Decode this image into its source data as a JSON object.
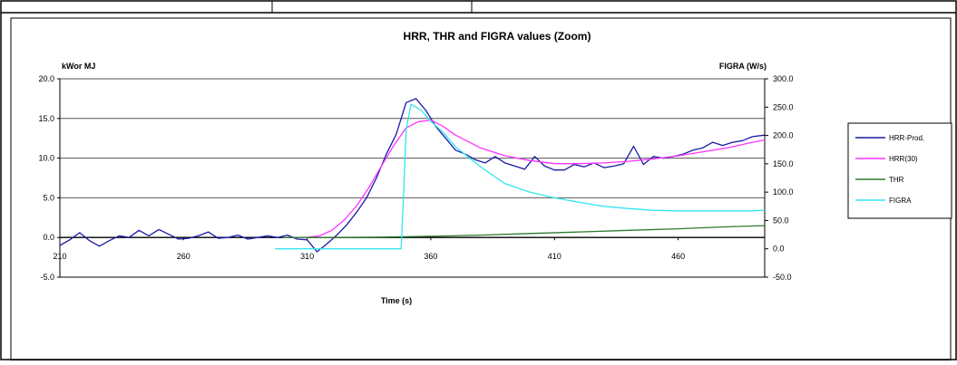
{
  "chart_data": {
    "type": "line",
    "title": "HRR, THR and FIGRA values (Zoom)",
    "xlabel": "Time (s)",
    "ylabel_left": "kWor MJ",
    "ylabel_right": "FIGRA (W/s)",
    "x_ticks": [
      "210",
      "260",
      "310",
      "360",
      "410",
      "460"
    ],
    "y_left_ticks": [
      "20.0",
      "15.0",
      "10.0",
      "5.0",
      "0.0",
      "-5.0"
    ],
    "y_right_ticks": [
      "300.0",
      "250.0",
      "200.0",
      "150.0",
      "100.0",
      "50.0",
      "0.0",
      "-50.0"
    ],
    "xlim": [
      210,
      495
    ],
    "ylim_left": [
      -5,
      20
    ],
    "ylim_right": [
      -50,
      300
    ],
    "grid": "horizontal",
    "legend_position": "right",
    "series": [
      {
        "name": "HRR-Prod.",
        "axis": "left",
        "color": "#1a1aa6",
        "x": [
          210,
          214,
          218,
          222,
          226,
          230,
          234,
          238,
          242,
          246,
          250,
          254,
          258,
          262,
          266,
          270,
          274,
          278,
          282,
          286,
          290,
          294,
          298,
          302,
          306,
          310,
          314,
          318,
          322,
          326,
          330,
          334,
          338,
          342,
          346,
          350,
          354,
          358,
          362,
          366,
          370,
          374,
          378,
          382,
          386,
          390,
          394,
          398,
          402,
          406,
          410,
          414,
          418,
          422,
          426,
          430,
          434,
          438,
          442,
          446,
          450,
          454,
          458,
          462,
          466,
          470,
          474,
          478,
          482,
          486,
          490,
          495
        ],
        "y": [
          -1.0,
          -0.3,
          0.6,
          -0.4,
          -1.1,
          -0.4,
          0.2,
          0.0,
          0.9,
          0.2,
          1.0,
          0.4,
          -0.2,
          -0.1,
          0.2,
          0.7,
          -0.1,
          0.0,
          0.3,
          -0.2,
          0.0,
          0.2,
          0.0,
          0.3,
          -0.2,
          -0.3,
          -1.8,
          -0.8,
          0.3,
          1.6,
          3.2,
          5.0,
          7.5,
          10.5,
          13.0,
          17.0,
          17.5,
          16.0,
          14.0,
          12.5,
          11.0,
          10.5,
          9.8,
          9.4,
          10.2,
          9.4,
          9.0,
          8.6,
          10.2,
          9.0,
          8.5,
          8.5,
          9.2,
          8.9,
          9.4,
          8.8,
          9.0,
          9.3,
          11.5,
          9.2,
          10.2,
          10.0,
          10.2,
          10.5,
          11.0,
          11.3,
          12.0,
          11.6,
          12.0,
          12.2,
          12.7,
          12.9
        ]
      },
      {
        "name": "HRR(30)",
        "axis": "left",
        "color": "#ff33ff",
        "x": [
          300,
          310,
          315,
          320,
          325,
          330,
          335,
          340,
          345,
          350,
          355,
          360,
          365,
          370,
          380,
          390,
          400,
          410,
          420,
          430,
          440,
          450,
          460,
          470,
          480,
          490,
          495
        ],
        "y": [
          0.0,
          0.0,
          0.2,
          0.9,
          2.2,
          4.0,
          6.3,
          9.0,
          11.6,
          13.8,
          14.6,
          14.8,
          14.0,
          12.9,
          11.3,
          10.3,
          9.7,
          9.3,
          9.3,
          9.4,
          9.6,
          9.9,
          10.3,
          10.8,
          11.3,
          12.0,
          12.3
        ]
      },
      {
        "name": "THR",
        "axis": "left",
        "color": "#2d7a2d",
        "x": [
          300,
          320,
          340,
          360,
          380,
          400,
          420,
          440,
          460,
          480,
          495
        ],
        "y": [
          0.0,
          0.0,
          0.05,
          0.15,
          0.3,
          0.5,
          0.7,
          0.9,
          1.1,
          1.35,
          1.5
        ]
      },
      {
        "name": "FIGRA",
        "axis": "right",
        "color": "#33e6ee",
        "x": [
          297,
          310,
          320,
          330,
          340,
          345,
          348,
          349,
          350,
          352,
          356,
          360,
          365,
          370,
          380,
          390,
          400,
          410,
          420,
          430,
          440,
          450,
          460,
          470,
          480,
          490,
          495
        ],
        "y": [
          0,
          0,
          0,
          0,
          0,
          0,
          0,
          100,
          210,
          255,
          245,
          225,
          205,
          180,
          145,
          115,
          100,
          90,
          82,
          75,
          71,
          68,
          67,
          67,
          67,
          67,
          68
        ]
      }
    ]
  }
}
